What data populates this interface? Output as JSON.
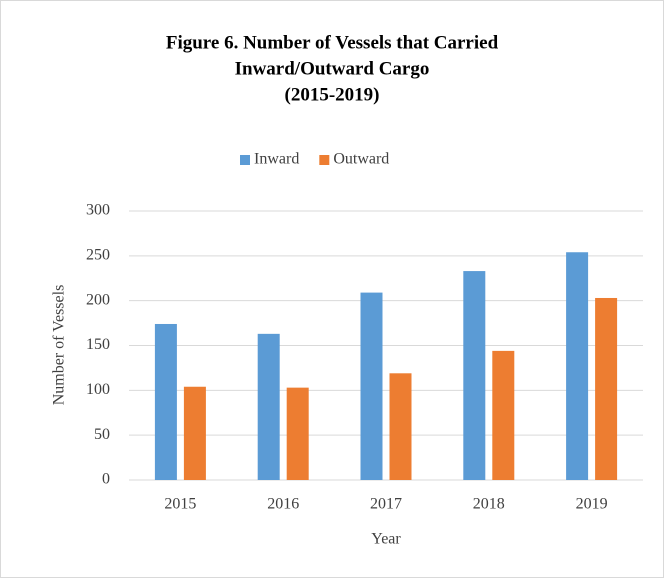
{
  "chart_data": {
    "type": "bar",
    "title": [
      "Figure 6. Number of Vessels that Carried",
      "Inward/Outward Cargo",
      "(2015-2019)"
    ],
    "x_label": "Year",
    "y_label": "Number of Vessels",
    "categories": [
      "2015",
      "2016",
      "2017",
      "2018",
      "2019"
    ],
    "series": [
      {
        "name": "Inward",
        "color": "#5b9bd5",
        "values": [
          174,
          163,
          209,
          233,
          254
        ]
      },
      {
        "name": "Outward",
        "color": "#ed7d31",
        "values": [
          104,
          103,
          119,
          144,
          203
        ]
      }
    ],
    "ylim": [
      0,
      300
    ],
    "yticks": [
      0,
      50,
      100,
      150,
      200,
      250,
      300
    ],
    "grid": true,
    "legend": "top"
  }
}
